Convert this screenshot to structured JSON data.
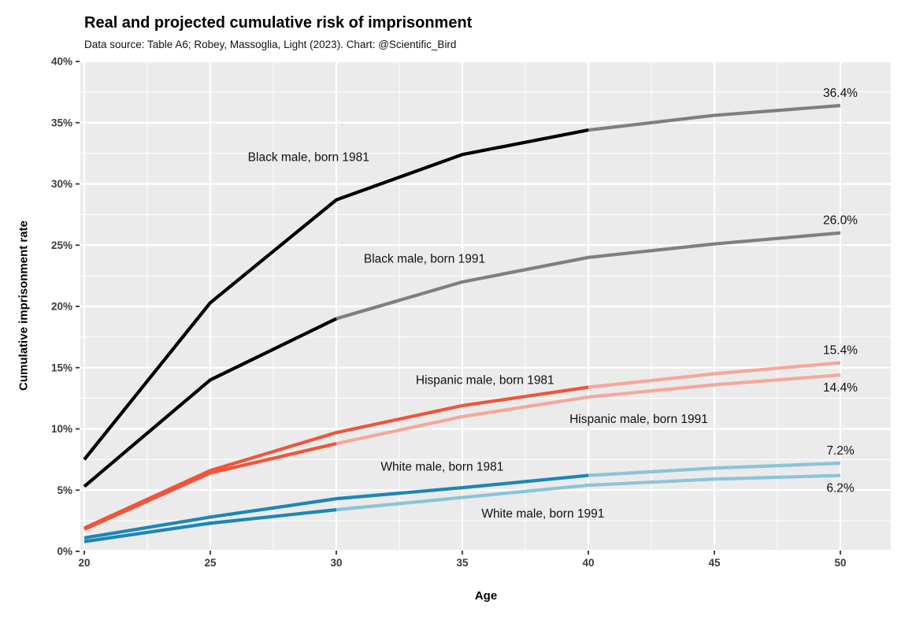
{
  "header": {
    "title": "Real and projected cumulative risk of imprisonment",
    "subtitle": "Data source: Table A6; Robey, Massoglia, Light (2023). Chart: @Scientific_Bird"
  },
  "chart_data": {
    "type": "line",
    "title": "Real and projected cumulative risk of imprisonment",
    "subtitle": "Data source: Table A6; Robey, Massoglia, Light (2023). Chart: @Scientific_Bird",
    "xlabel": "Age",
    "ylabel": "Cumulative imprisonment rate",
    "x": [
      20,
      25,
      30,
      35,
      40,
      45,
      50
    ],
    "xlim": [
      19.8,
      52
    ],
    "ylim": [
      0,
      40
    ],
    "x_ticks": [
      {
        "label": "20",
        "value": 20
      },
      {
        "label": "25",
        "value": 25
      },
      {
        "label": "30",
        "value": 30
      },
      {
        "label": "35",
        "value": 35
      },
      {
        "label": "40",
        "value": 40
      },
      {
        "label": "45",
        "value": 45
      },
      {
        "label": "50",
        "value": 50
      }
    ],
    "y_ticks": [
      {
        "label": "0%",
        "value": 0
      },
      {
        "label": "5%",
        "value": 5
      },
      {
        "label": "10%",
        "value": 10
      },
      {
        "label": "15%",
        "value": 15
      },
      {
        "label": "20%",
        "value": 20
      },
      {
        "label": "25%",
        "value": 25
      },
      {
        "label": "30%",
        "value": 30
      },
      {
        "label": "35%",
        "value": 35
      },
      {
        "label": "40%",
        "value": 40
      }
    ],
    "grid": {
      "major": true,
      "minor": true,
      "position_minor_x": [
        22.5,
        27.5,
        32.5,
        37.5,
        42.5,
        47.5
      ],
      "position_minor_y": [
        2.5,
        7.5,
        12.5,
        17.5,
        22.5,
        27.5,
        32.5,
        37.5
      ]
    },
    "legend_position": "labels-on-chart",
    "series": [
      {
        "name": "Black male, born 1991",
        "values": [
          5.3,
          14.0,
          19.0,
          22.0,
          24.0,
          25.1,
          26.0
        ],
        "real_until_age": 30,
        "color_real": "#000000",
        "color_projected": "#7f7f7f",
        "end_label": "26.0%",
        "end_label_position": "above"
      },
      {
        "name": "Black male, born 1981",
        "values": [
          7.5,
          20.3,
          28.7,
          32.4,
          34.4,
          35.6,
          36.4
        ],
        "real_until_age": 40,
        "color_real": "#000000",
        "color_projected": "#7f7f7f",
        "end_label": "36.4%",
        "end_label_position": "above"
      },
      {
        "name": "Hispanic male, born 1991",
        "values": [
          1.8,
          6.4,
          8.8,
          11.0,
          12.6,
          13.6,
          14.4
        ],
        "real_until_age": 30,
        "color_real": "#f1543a",
        "color_projected": "#f5a89b",
        "end_label": "14.4%",
        "end_label_position": "below"
      },
      {
        "name": "Hispanic male, born 1981",
        "values": [
          1.9,
          6.6,
          9.7,
          11.9,
          13.4,
          14.5,
          15.4
        ],
        "real_until_age": 40,
        "color_real": "#f1543a",
        "color_projected": "#f5a89b",
        "end_label": "15.4%",
        "end_label_position": "above"
      },
      {
        "name": "White male, born 1991",
        "values": [
          0.8,
          2.3,
          3.4,
          4.4,
          5.4,
          5.9,
          6.2
        ],
        "real_until_age": 30,
        "color_real": "#1e86b5",
        "color_projected": "#8ac4da",
        "end_label": "6.2%",
        "end_label_position": "below"
      },
      {
        "name": "White male, born 1981",
        "values": [
          1.1,
          2.8,
          4.3,
          5.2,
          6.2,
          6.8,
          7.2
        ],
        "real_until_age": 40,
        "color_real": "#1e86b5",
        "color_projected": "#8ac4da",
        "end_label": "7.2%",
        "end_label_position": "above"
      }
    ],
    "annotations": [
      {
        "text": "Black male, born 1981",
        "x": 28.9,
        "y": 32.2
      },
      {
        "text": "Black male, born 1991",
        "x": 33.5,
        "y": 23.9
      },
      {
        "text": "Hispanic male, born 1981",
        "x": 35.9,
        "y": 14.0
      },
      {
        "text": "Hispanic male, born 1991",
        "x": 42.0,
        "y": 10.8
      },
      {
        "text": "White male, born 1981",
        "x": 34.2,
        "y": 6.9
      },
      {
        "text": "White male, born 1991",
        "x": 38.2,
        "y": 3.1
      }
    ],
    "colors": {
      "panel_background": "#ebebeb",
      "gridline": "#ffffff",
      "tick_mark": "#333333",
      "tick_label": "#3b3b3b",
      "annotation_text": "#111111"
    }
  }
}
